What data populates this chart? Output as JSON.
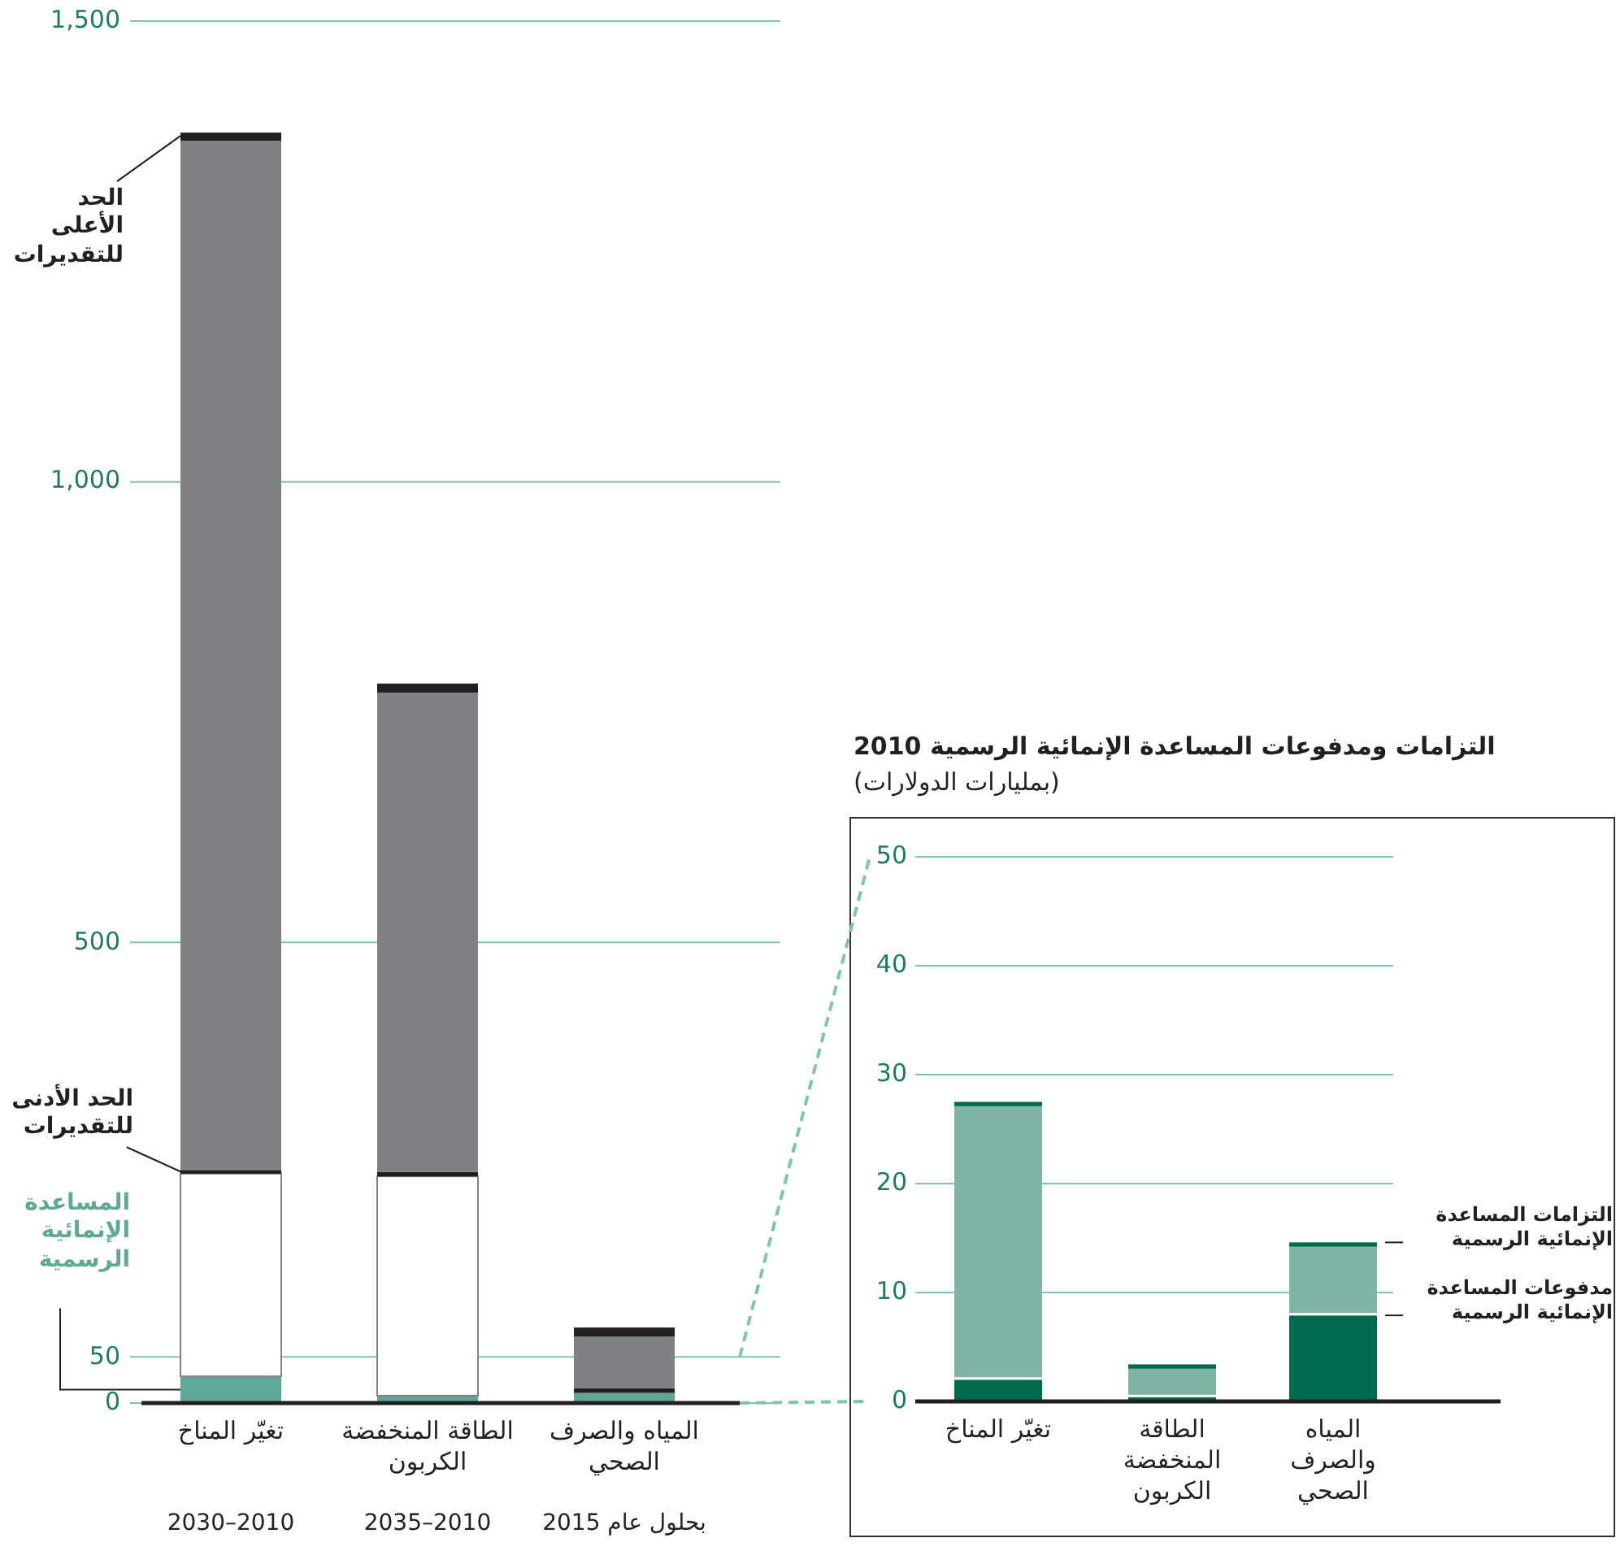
{
  "chart_data": [
    {
      "type": "bar",
      "stacked": true,
      "categories": [
        "تغيّر المناخ",
        "الطاقة المنخفضة الكربون",
        "المياه والصرف الصحي"
      ],
      "series": [
        {
          "name": "المساعدة الإنمائية الرسمية",
          "color": "#5fa898",
          "values": [
            29,
            8,
            11
          ]
        },
        {
          "color": "#ffffff",
          "values": [
            220,
            238,
            0
          ]
        },
        {
          "name": "الحد الأدنى للتقديرات",
          "color": "#231f20",
          "values": [
            4,
            5,
            5
          ]
        },
        {
          "color": "#808184",
          "values": [
            1117,
            520,
            56
          ]
        },
        {
          "name": "الحد الأعلى للتقديرات",
          "color": "#231f20",
          "values": [
            9,
            10,
            10
          ]
        }
      ],
      "ylim": [
        0,
        1500
      ],
      "yticks": [
        0,
        50,
        500,
        {
          "value": 1000,
          "label": "1,000"
        },
        {
          "value": 1500,
          "label": "1,500"
        }
      ],
      "grid": "y",
      "legend": false,
      "annotations": [
        "2030–2010",
        "2035–2010",
        "بحلول عام 2015"
      ]
    },
    {
      "type": "bar",
      "stacked": true,
      "title": "التزامات ومدفوعات المساعدة الإنمائية الرسمية 2010",
      "subtitle": "(بمليارات الدولارات)",
      "categories": [
        "تغيّر المناخ",
        "الطاقة المنخفضة الكربون",
        "المياه والصرف الصحي"
      ],
      "series": [
        {
          "name": "مدفوعات المساعدة الإنمائية الرسمية",
          "color": "#006a4e",
          "values": [
            2.0,
            0.4,
            7.9
          ]
        },
        {
          "color": "#80b4a6",
          "values": [
            25.1,
            2.6,
            6.3
          ]
        },
        {
          "name": "التزامات المساعدة الإنمائية الرسمية",
          "color": "#006a4e",
          "values": [
            0.4,
            0.4,
            0.4
          ]
        }
      ],
      "ylim": [
        0,
        50
      ],
      "yticks": [
        0,
        10,
        20,
        30,
        40,
        50
      ],
      "grid": "y",
      "legend": false
    }
  ]
}
